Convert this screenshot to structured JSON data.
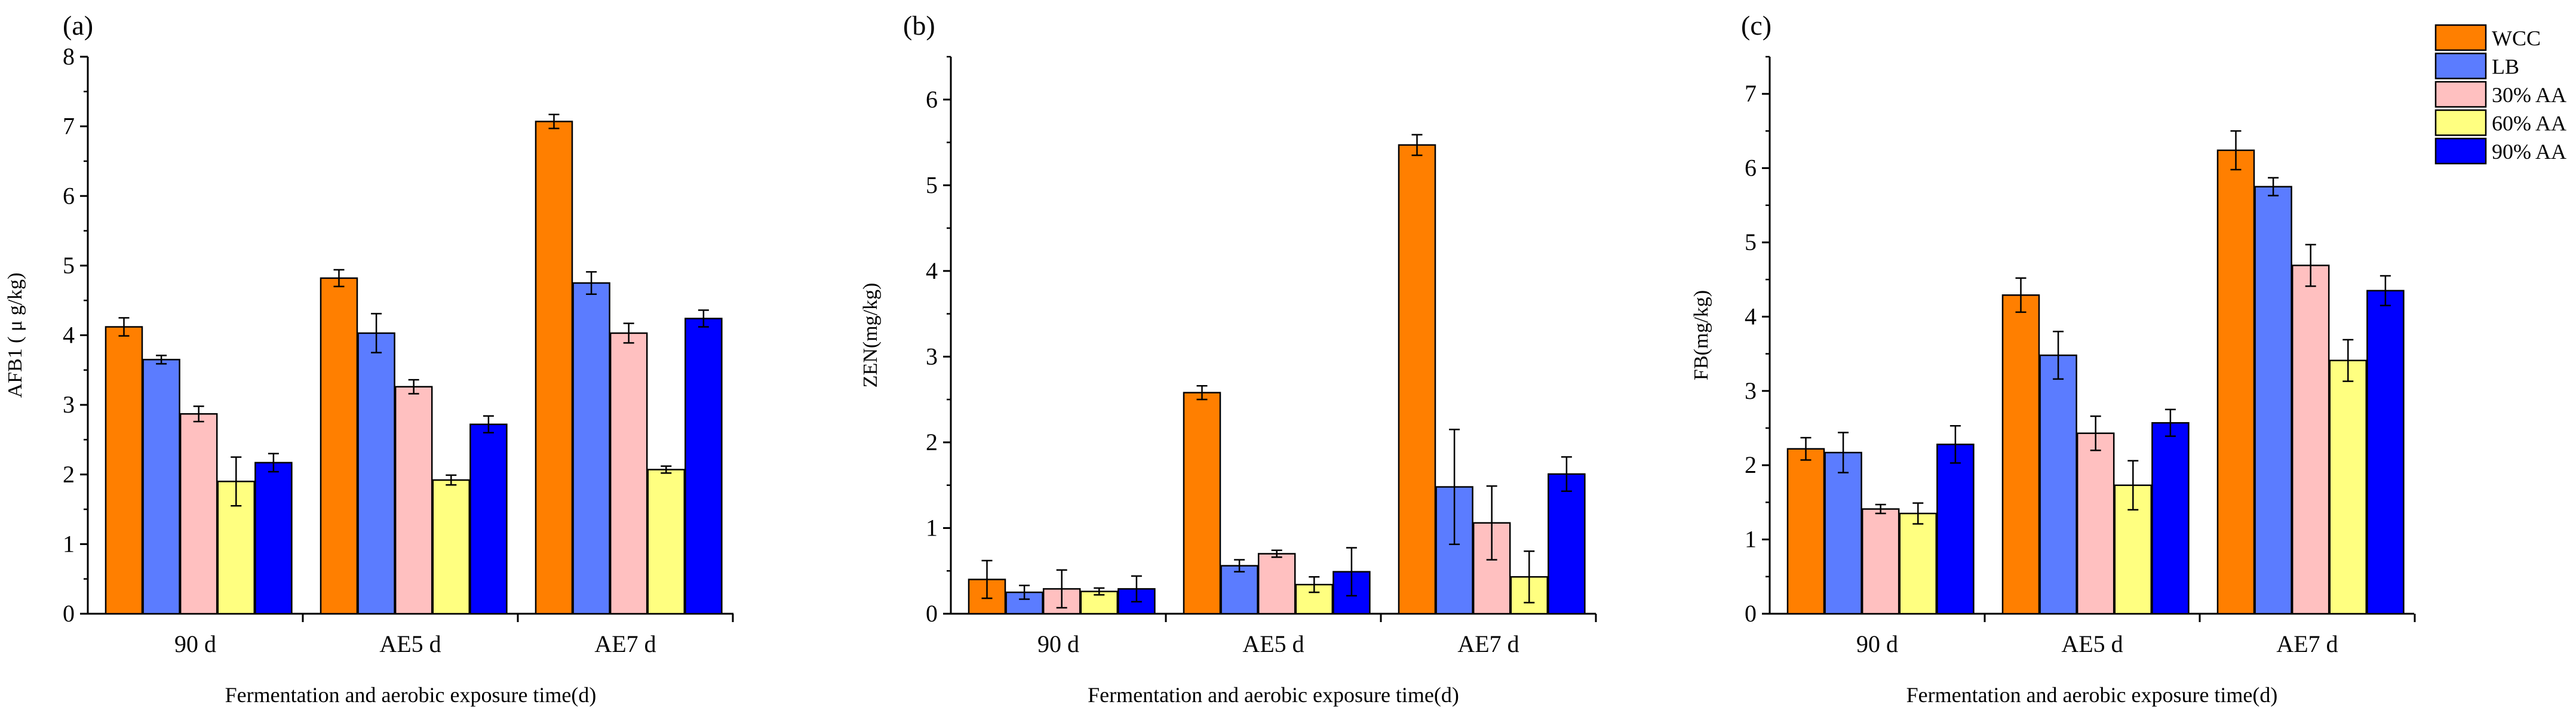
{
  "legend": {
    "entries": [
      {
        "label": "WCC",
        "color": "#ff7f00"
      },
      {
        "label": "LB",
        "color": "#5b7cff"
      },
      {
        "label": "30% AA",
        "color": "#ffc0c0"
      },
      {
        "label": "60% AA",
        "color": "#ffff80"
      },
      {
        "label": "90% AA",
        "color": "#0000ff"
      }
    ]
  },
  "chart_data": [
    {
      "type": "bar",
      "panel_label": "(a)",
      "title": "",
      "ylabel": "AFB1 ( μ g/kg)",
      "xlabel": "Fermentation and aerobic exposure time(d)",
      "categories": [
        "90 d",
        "AE5 d",
        "AE7 d"
      ],
      "ylim": [
        0,
        8
      ],
      "yticks": [
        0,
        1,
        2,
        3,
        4,
        5,
        6,
        7,
        8
      ],
      "series": [
        {
          "name": "WCC",
          "values": [
            4.12,
            4.82,
            7.07
          ],
          "errors": [
            0.13,
            0.12,
            0.1
          ]
        },
        {
          "name": "LB",
          "values": [
            3.65,
            4.03,
            4.75
          ],
          "errors": [
            0.06,
            0.28,
            0.16
          ]
        },
        {
          "name": "30% AA",
          "values": [
            2.87,
            3.26,
            4.03
          ],
          "errors": [
            0.11,
            0.1,
            0.14
          ]
        },
        {
          "name": "60% AA",
          "values": [
            1.9,
            1.92,
            2.07
          ],
          "errors": [
            0.35,
            0.07,
            0.05
          ]
        },
        {
          "name": "90% AA",
          "values": [
            2.17,
            2.72,
            4.24
          ],
          "errors": [
            0.13,
            0.12,
            0.12
          ]
        }
      ]
    },
    {
      "type": "bar",
      "panel_label": "(b)",
      "title": "",
      "ylabel": "ZEN(mg/kg)",
      "xlabel": "Fermentation and aerobic exposure time(d)",
      "categories": [
        "90 d",
        "AE5 d",
        "AE7 d"
      ],
      "ylim": [
        0,
        6.5
      ],
      "yticks": [
        0,
        1,
        2,
        3,
        4,
        5,
        6
      ],
      "series": [
        {
          "name": "WCC",
          "values": [
            0.4,
            2.58,
            5.47
          ],
          "errors": [
            0.22,
            0.08,
            0.12
          ]
        },
        {
          "name": "LB",
          "values": [
            0.25,
            0.56,
            1.48
          ],
          "errors": [
            0.08,
            0.07,
            0.67
          ]
        },
        {
          "name": "30% AA",
          "values": [
            0.29,
            0.7,
            1.06
          ],
          "errors": [
            0.22,
            0.04,
            0.43
          ]
        },
        {
          "name": "60% AA",
          "values": [
            0.26,
            0.34,
            0.43
          ],
          "errors": [
            0.04,
            0.09,
            0.3
          ]
        },
        {
          "name": "90% AA",
          "values": [
            0.29,
            0.49,
            1.63
          ],
          "errors": [
            0.15,
            0.28,
            0.2
          ]
        }
      ]
    },
    {
      "type": "bar",
      "panel_label": "(c)",
      "title": "",
      "ylabel": "FB(mg/kg)",
      "xlabel": "Fermentation and aerobic exposure time(d)",
      "categories": [
        "90 d",
        "AE5 d",
        "AE7 d"
      ],
      "ylim": [
        0,
        7.5
      ],
      "yticks": [
        0,
        1,
        2,
        3,
        4,
        5,
        6,
        7
      ],
      "series": [
        {
          "name": "WCC",
          "values": [
            2.22,
            4.29,
            6.24
          ],
          "errors": [
            0.15,
            0.23,
            0.26
          ]
        },
        {
          "name": "LB",
          "values": [
            2.17,
            3.48,
            5.75
          ],
          "errors": [
            0.27,
            0.32,
            0.12
          ]
        },
        {
          "name": "30% AA",
          "values": [
            1.41,
            2.43,
            4.69
          ],
          "errors": [
            0.06,
            0.23,
            0.28
          ]
        },
        {
          "name": "60% AA",
          "values": [
            1.35,
            1.73,
            3.41
          ],
          "errors": [
            0.14,
            0.33,
            0.28
          ]
        },
        {
          "name": "90% AA",
          "values": [
            2.28,
            2.57,
            4.35
          ],
          "errors": [
            0.25,
            0.18,
            0.2
          ]
        }
      ]
    }
  ]
}
